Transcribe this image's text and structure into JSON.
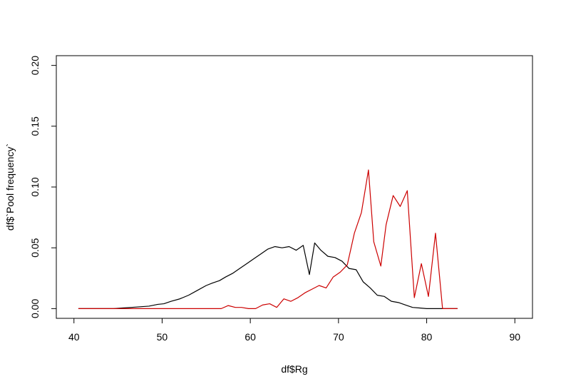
{
  "chart_data": {
    "type": "line",
    "xlabel": "df$Rg",
    "ylabel": "df$`Pool frequency`",
    "xlim": [
      38,
      92
    ],
    "ylim": [
      -0.008,
      0.208
    ],
    "x_ticks": [
      40,
      50,
      60,
      70,
      80,
      90
    ],
    "y_ticks": [
      0.0,
      0.05,
      0.1,
      0.15,
      0.2
    ],
    "x_tick_labels": [
      "40",
      "50",
      "60",
      "70",
      "80",
      "90"
    ],
    "y_tick_labels": [
      "0.00",
      "0.05",
      "0.10",
      "0.15",
      "0.20"
    ],
    "grid": false,
    "series": [
      {
        "color": "#000000",
        "x": [
          40.5,
          42.0,
          43.0,
          44.5,
          45.5,
          46.5,
          47.5,
          48.5,
          49.5,
          50.2,
          51.0,
          52.0,
          53.0,
          54.0,
          55.0,
          55.7,
          56.5,
          57.2,
          58.0,
          58.8,
          59.6,
          60.4,
          61.2,
          62.0,
          62.8,
          63.6,
          64.4,
          65.2,
          66.0,
          66.7,
          67.3,
          68.0,
          68.8,
          69.6,
          70.4,
          71.2,
          72.0,
          72.8,
          73.6,
          74.4,
          75.2,
          76.0,
          76.8,
          77.6,
          78.4,
          79.2,
          80.0,
          80.8,
          81.6,
          82.4,
          83.5
        ],
        "y": [
          0.0,
          0.0,
          0.0,
          0.0,
          0.0005,
          0.001,
          0.0015,
          0.002,
          0.0035,
          0.004,
          0.006,
          0.008,
          0.011,
          0.015,
          0.019,
          0.021,
          0.023,
          0.026,
          0.029,
          0.033,
          0.037,
          0.041,
          0.045,
          0.049,
          0.051,
          0.05,
          0.051,
          0.048,
          0.052,
          0.028,
          0.054,
          0.048,
          0.043,
          0.042,
          0.039,
          0.033,
          0.032,
          0.022,
          0.017,
          0.011,
          0.01,
          0.006,
          0.005,
          0.003,
          0.001,
          0.0005,
          0.0,
          0.0,
          0.0,
          0.0,
          0.0
        ]
      },
      {
        "color": "#cc0000",
        "x": [
          40.5,
          42.0,
          44.0,
          46.0,
          48.0,
          50.0,
          52.0,
          54.0,
          56.7,
          57.5,
          58.3,
          59.0,
          59.8,
          60.6,
          61.4,
          62.2,
          63.0,
          63.8,
          64.6,
          65.4,
          66.2,
          67.0,
          67.8,
          68.6,
          69.4,
          70.2,
          71.0,
          71.8,
          72.6,
          73.4,
          74.0,
          74.8,
          75.4,
          76.2,
          77.0,
          77.8,
          78.6,
          79.4,
          80.2,
          81.0,
          81.8,
          82.6,
          83.5
        ],
        "y": [
          0.0,
          0.0,
          0.0,
          0.0,
          0.0,
          0.0,
          0.0,
          0.0,
          0.0,
          0.0025,
          0.001,
          0.001,
          0.0,
          0.0,
          0.003,
          0.004,
          0.001,
          0.008,
          0.006,
          0.009,
          0.013,
          0.016,
          0.019,
          0.017,
          0.026,
          0.03,
          0.036,
          0.062,
          0.079,
          0.114,
          0.055,
          0.035,
          0.069,
          0.093,
          0.084,
          0.097,
          0.009,
          0.037,
          0.01,
          0.062,
          0.0,
          0.0,
          0.0
        ]
      }
    ]
  }
}
